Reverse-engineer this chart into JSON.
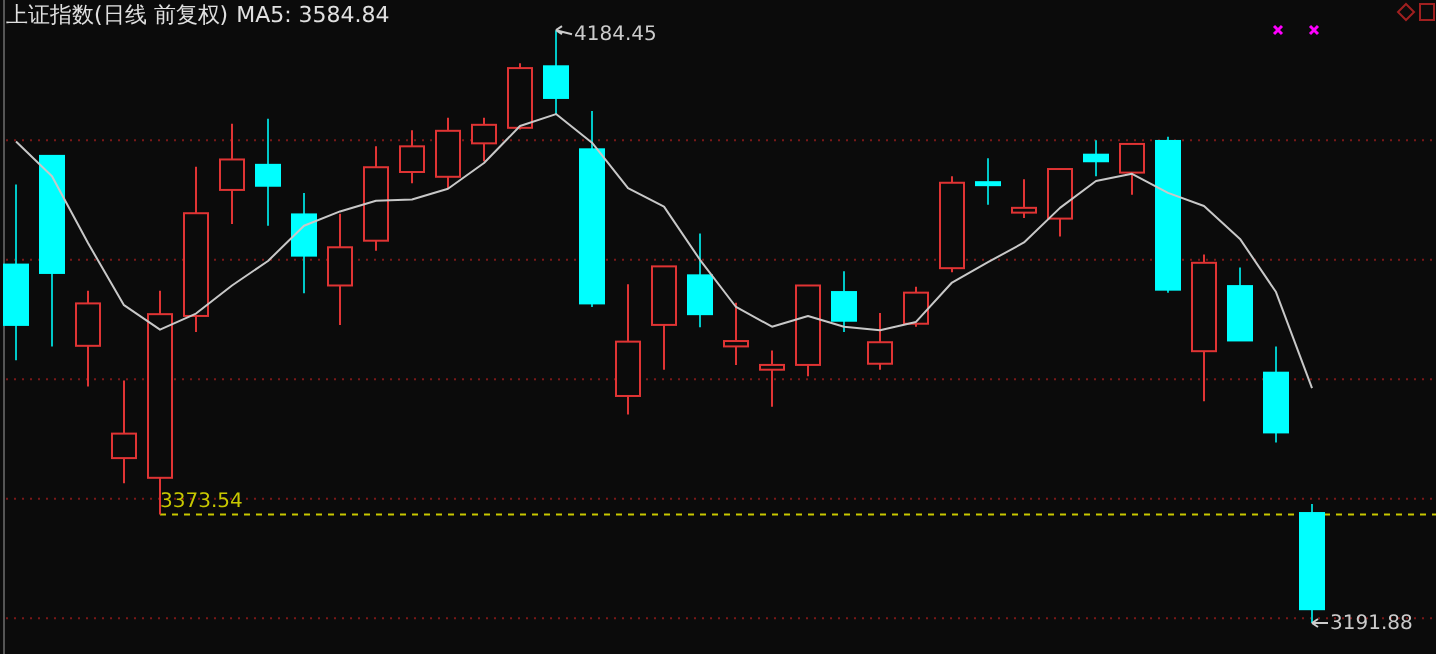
{
  "chart_data": {
    "type": "candlestick",
    "title": "上证指数(日线 前复权)",
    "categories": [
      null,
      null,
      null,
      null,
      null,
      null,
      null,
      null,
      null,
      null,
      null,
      null,
      null,
      null,
      null,
      null,
      null,
      null,
      null,
      null,
      null,
      null,
      null,
      null,
      null,
      null,
      null,
      null,
      null,
      null,
      null,
      null,
      null,
      null,
      null,
      null,
      null
    ],
    "ohlc": [
      [
        3792,
        3926,
        3632,
        3691
      ],
      [
        3974,
        3974,
        3655,
        3778
      ],
      [
        3656,
        3748,
        3588,
        3727
      ],
      [
        3468,
        3598,
        3426,
        3509
      ],
      [
        3435,
        3748,
        3373.54,
        3709
      ],
      [
        3706,
        3956,
        3679,
        3878
      ],
      [
        3917,
        4028,
        3860,
        3968
      ],
      [
        3959,
        4036,
        3857,
        3924
      ],
      [
        3876,
        3912,
        3744,
        3807
      ],
      [
        3757,
        3877,
        3691,
        3821
      ],
      [
        3832,
        3990,
        3815,
        3955
      ],
      [
        3947,
        4017,
        3928,
        3990
      ],
      [
        3939,
        4038,
        3920,
        4016
      ],
      [
        3995,
        4038,
        3965,
        4026
      ],
      [
        4021,
        4129,
        4018,
        4121
      ],
      [
        4124,
        4184.45,
        4044,
        4071
      ],
      [
        3985,
        4049,
        3721,
        3727
      ],
      [
        3572,
        3759,
        3541,
        3663
      ],
      [
        3691,
        3789,
        3616,
        3789
      ],
      [
        3774,
        3844,
        3687,
        3709
      ],
      [
        3655,
        3728,
        3624,
        3664
      ],
      [
        3616,
        3648,
        3554,
        3624
      ],
      [
        3624,
        3757,
        3605,
        3757
      ],
      [
        3746,
        3781,
        3679,
        3698
      ],
      [
        3626,
        3711,
        3616,
        3662
      ],
      [
        3693,
        3755,
        3688,
        3745
      ],
      [
        3786,
        3940,
        3779,
        3929
      ],
      [
        3930,
        3970,
        3892,
        3927
      ],
      [
        3879,
        3935,
        3870,
        3887
      ],
      [
        3869,
        3952,
        3839,
        3952
      ],
      [
        3976,
        4000,
        3940,
        3965
      ],
      [
        3946,
        3994,
        3909,
        3994
      ],
      [
        3999,
        4006,
        3745,
        3750
      ],
      [
        3647,
        3809,
        3563,
        3795
      ],
      [
        3756,
        3787,
        3665,
        3665
      ],
      [
        3611,
        3655,
        3494,
        3511
      ],
      [
        3376,
        3391,
        3191.88,
        3215
      ]
    ],
    "series": [
      {
        "type": "line",
        "name": "MA5: 3584.84",
        "color": "#c8c8c8",
        "values": [
          3998,
          3940,
          3828,
          3724,
          3683,
          3710,
          3757,
          3798,
          3857,
          3881,
          3899,
          3901,
          3919,
          3962,
          4024,
          4044,
          3996,
          3920,
          3889,
          3800,
          3721,
          3688,
          3706,
          3688,
          3682,
          3696,
          3762,
          3796,
          3829,
          3887,
          3932,
          3944,
          3912,
          3890,
          3835,
          3746,
          3585
        ]
      }
    ],
    "ylim": [
      3140,
      4235
    ],
    "yticks": [
      3200,
      3400,
      3600,
      3800,
      4000
    ],
    "grid": "y",
    "tick_labels": false,
    "ref_lines": [
      {
        "axis": "y",
        "value": 3373.54,
        "label": "3373.54",
        "color": "#c8c800",
        "line_style": "dashed"
      }
    ],
    "annotations": [
      "4184.45",
      "3191.88"
    ]
  }
}
